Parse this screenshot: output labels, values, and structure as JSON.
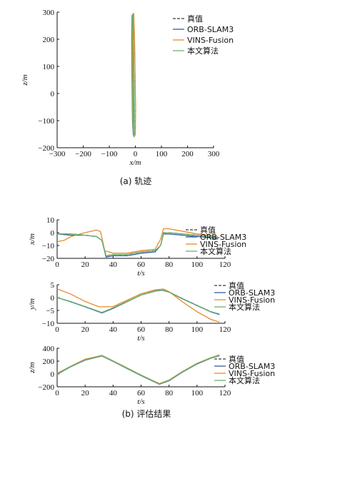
{
  "colors": {
    "truth": "#3a3a3a",
    "orb": "#2f5e9e",
    "vins": "#e88a2c",
    "ours": "#6ab46a"
  },
  "captions": {
    "a": "(a) 轨迹",
    "b": "(b) 评估结果"
  },
  "chart_data": [
    {
      "type": "line",
      "xlabel": "x/m",
      "ylabel": "z/m",
      "xlim": [
        -300,
        300
      ],
      "ylim": [
        -200,
        300
      ],
      "xticks": [
        "−300",
        "−200",
        "−100",
        "0",
        "100",
        "200",
        "300"
      ],
      "yticks": [
        "−200",
        "−100",
        "0",
        "100",
        "200",
        "300"
      ],
      "legend": [
        "真值",
        "ORB-SLAM3",
        "VINS-Fusion",
        "本文算法"
      ],
      "legend_position": "top-right",
      "series": [
        {
          "name": "真值",
          "x": [
            -10,
            -12,
            -13,
            -12,
            -10,
            -7,
            -5,
            -4,
            -4,
            -6,
            -8,
            -10
          ],
          "y": [
            285,
            290,
            200,
            50,
            -100,
            -150,
            -160,
            -155,
            -50,
            100,
            250,
            285
          ]
        },
        {
          "name": "ORB-SLAM3",
          "x": [
            -11,
            -13,
            -14,
            -13,
            -11,
            -8,
            -5,
            -5,
            -5,
            -6,
            -8,
            -11
          ],
          "y": [
            284,
            289,
            200,
            50,
            -100,
            -152,
            -158,
            -152,
            -50,
            100,
            250,
            284
          ]
        },
        {
          "name": "VINS-Fusion",
          "x": [
            -8,
            -9,
            -10,
            -9,
            -8,
            -5,
            -2,
            0,
            1,
            0,
            -2,
            -6,
            -8
          ],
          "y": [
            290,
            296,
            200,
            50,
            -100,
            -150,
            -155,
            -150,
            -50,
            5,
            150,
            296,
            290
          ]
        },
        {
          "name": "本文算法",
          "x": [
            -10,
            -12,
            -13,
            -12,
            -10,
            -7,
            -5,
            -4,
            -4,
            -6,
            -8,
            -10
          ],
          "y": [
            286,
            291,
            200,
            50,
            -100,
            -151,
            -161,
            -156,
            -50,
            100,
            250,
            286
          ]
        }
      ]
    },
    {
      "type": "line",
      "xlabel": "t/s",
      "ylabel": "x/m",
      "xlim": [
        0,
        120
      ],
      "ylim": [
        -20,
        10
      ],
      "xticks": [
        "0",
        "20",
        "40",
        "60",
        "80",
        "100",
        "120"
      ],
      "yticks": [
        "−20",
        "−10",
        "0",
        "10"
      ],
      "legend": [
        "真值",
        "ORB-SLAM3",
        "VINS-Fusion",
        "本文算法"
      ],
      "legend_position": "right",
      "series": [
        {
          "name": "真值",
          "x": [
            0,
            10,
            20,
            28,
            32,
            35,
            40,
            50,
            60,
            70,
            74,
            76,
            80,
            90,
            100,
            110,
            115
          ],
          "y": [
            -1,
            -1,
            -2,
            -3,
            -6,
            -18,
            -17,
            -17,
            -15,
            -14,
            -10,
            0,
            0,
            -1,
            -2,
            -3,
            -4
          ]
        },
        {
          "name": "ORB-SLAM3",
          "x": [
            0,
            10,
            20,
            28,
            32,
            35,
            40,
            50,
            60,
            70,
            74,
            76,
            80,
            90,
            100,
            110,
            115
          ],
          "y": [
            -1,
            -2,
            -2,
            -3,
            -6,
            -19,
            -18,
            -18,
            -16,
            -15,
            -10,
            -1,
            -1,
            -2,
            -3,
            -4,
            -5
          ]
        },
        {
          "name": "VINS-Fusion",
          "x": [
            0,
            5,
            10,
            20,
            28,
            31,
            34,
            40,
            50,
            60,
            70,
            74,
            76,
            80,
            90,
            100,
            110,
            115
          ],
          "y": [
            -7,
            -6,
            -3,
            0,
            2,
            1,
            -14,
            -16,
            -16,
            -14,
            -13,
            -5,
            3,
            3,
            1,
            -1,
            -2,
            -3
          ]
        },
        {
          "name": "本文算法",
          "x": [
            0,
            10,
            20,
            28,
            32,
            35,
            40,
            50,
            60,
            70,
            74,
            76,
            80,
            90,
            100,
            110,
            115
          ],
          "y": [
            -1,
            -1,
            -2,
            -3,
            -6,
            -18,
            -17,
            -17,
            -15,
            -14,
            -10,
            0,
            0,
            -1,
            -2,
            -3,
            -4
          ]
        }
      ]
    },
    {
      "type": "line",
      "xlabel": "t/s",
      "ylabel": "y/m",
      "xlim": [
        0,
        120
      ],
      "ylim": [
        -10,
        5
      ],
      "xticks": [
        "0",
        "20",
        "40",
        "60",
        "80",
        "100",
        "120"
      ],
      "yticks": [
        "−10",
        "−5",
        "0",
        "5"
      ],
      "legend": [
        "真值",
        "ORB-SLAM3",
        "VINS-Fusion",
        "本文算法"
      ],
      "legend_position": "right",
      "series": [
        {
          "name": "真值",
          "x": [
            0,
            10,
            20,
            32,
            40,
            50,
            60,
            70,
            75,
            80,
            90,
            100,
            110,
            116
          ],
          "y": [
            0,
            -1.6,
            -3.5,
            -5.8,
            -4,
            -1.5,
            1,
            2.6,
            3,
            2.2,
            -0.5,
            -3,
            -5.5,
            -6.4
          ]
        },
        {
          "name": "ORB-SLAM3",
          "x": [
            0,
            10,
            20,
            32,
            40,
            50,
            60,
            70,
            75,
            80,
            90,
            100,
            110,
            116
          ],
          "y": [
            0,
            -1.7,
            -3.6,
            -6,
            -4.2,
            -1.6,
            1,
            2.5,
            2.9,
            2.1,
            -0.6,
            -3.1,
            -5.6,
            -6.6
          ]
        },
        {
          "name": "VINS-Fusion",
          "x": [
            0,
            10,
            20,
            30,
            40,
            50,
            60,
            70,
            76,
            80,
            90,
            100,
            110,
            116
          ],
          "y": [
            3.4,
            1.3,
            -1.5,
            -3.6,
            -3.5,
            -1,
            1.5,
            3,
            3.3,
            2.3,
            -1.8,
            -5.5,
            -8.5,
            -9.5
          ]
        },
        {
          "name": "本文算法",
          "x": [
            0,
            10,
            20,
            32,
            40,
            50,
            60,
            70,
            75,
            80,
            90,
            100,
            110,
            116
          ],
          "y": [
            0,
            -1.6,
            -3.5,
            -5.8,
            -4,
            -1.5,
            1,
            2.6,
            3,
            2.2,
            -0.5,
            -3,
            -5.5,
            -6.4
          ]
        }
      ]
    },
    {
      "type": "line",
      "xlabel": "t/s",
      "ylabel": "z/m",
      "xlim": [
        0,
        120
      ],
      "ylim": [
        -200,
        400
      ],
      "xticks": [
        "0",
        "20",
        "40",
        "60",
        "80",
        "100",
        "120"
      ],
      "yticks": [
        "−200",
        "0",
        "200",
        "400"
      ],
      "legend": [
        "真值",
        "ORB-SLAM3",
        "VINS-Fusion",
        "本文算法"
      ],
      "legend_position": "right",
      "series": [
        {
          "name": "真值",
          "x": [
            0,
            10,
            20,
            32,
            40,
            50,
            60,
            73,
            80,
            90,
            100,
            110,
            116
          ],
          "y": [
            0,
            120,
            220,
            285,
            200,
            90,
            -20,
            -155,
            -100,
            40,
            160,
            250,
            290
          ]
        },
        {
          "name": "ORB-SLAM3",
          "x": [
            0,
            10,
            20,
            32,
            40,
            50,
            60,
            73,
            80,
            90,
            100,
            110,
            116
          ],
          "y": [
            -5,
            115,
            215,
            280,
            195,
            85,
            -25,
            -160,
            -105,
            35,
            155,
            245,
            285
          ]
        },
        {
          "name": "VINS-Fusion",
          "x": [
            0,
            10,
            20,
            32,
            40,
            50,
            60,
            73,
            80,
            90,
            100,
            110,
            116
          ],
          "y": [
            10,
            125,
            230,
            290,
            205,
            95,
            -15,
            -150,
            -95,
            45,
            165,
            255,
            295
          ]
        },
        {
          "name": "本文算法",
          "x": [
            0,
            10,
            20,
            32,
            40,
            50,
            60,
            73,
            80,
            90,
            100,
            110,
            116
          ],
          "y": [
            0,
            120,
            220,
            285,
            200,
            90,
            -20,
            -155,
            -100,
            40,
            160,
            250,
            290
          ]
        }
      ]
    }
  ]
}
